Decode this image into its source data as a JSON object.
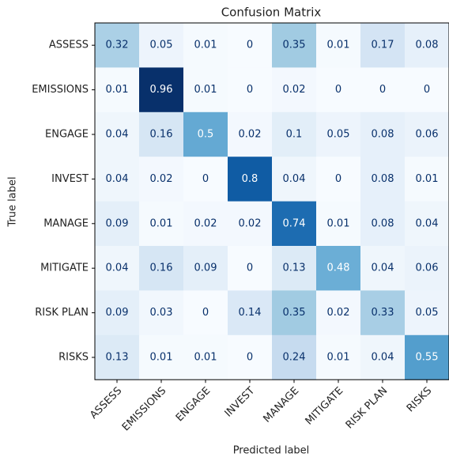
{
  "chart_data": {
    "type": "heatmap",
    "title": "Confusion Matrix",
    "xlabel": "Predicted label",
    "ylabel": "True label",
    "x_categories": [
      "ASSESS",
      "EMISSIONS",
      "ENGAGE",
      "INVEST",
      "MANAGE",
      "MITIGATE",
      "RISK PLAN",
      "RISKS"
    ],
    "y_categories": [
      "ASSESS",
      "EMISSIONS",
      "ENGAGE",
      "INVEST",
      "MANAGE",
      "MITIGATE",
      "RISK PLAN",
      "RISKS"
    ],
    "values": [
      [
        0.32,
        0.05,
        0.01,
        0,
        0.35,
        0.01,
        0.17,
        0.08
      ],
      [
        0.01,
        0.96,
        0.01,
        0,
        0.02,
        0,
        0,
        0
      ],
      [
        0.04,
        0.16,
        0.5,
        0.02,
        0.1,
        0.05,
        0.08,
        0.06
      ],
      [
        0.04,
        0.02,
        0,
        0.8,
        0.04,
        0,
        0.08,
        0.01
      ],
      [
        0.09,
        0.01,
        0.02,
        0.02,
        0.74,
        0.01,
        0.08,
        0.04
      ],
      [
        0.04,
        0.16,
        0.09,
        0,
        0.13,
        0.48,
        0.04,
        0.06
      ],
      [
        0.09,
        0.03,
        0,
        0.14,
        0.35,
        0.02,
        0.33,
        0.05
      ],
      [
        0.13,
        0.01,
        0.01,
        0,
        0.24,
        0.01,
        0.04,
        0.55
      ]
    ],
    "colormap": "Blues"
  }
}
